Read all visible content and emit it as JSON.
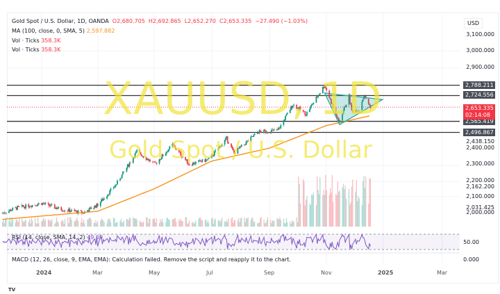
{
  "header": {
    "symbol": "Gold Spot / U.S. Dollar, 1D, OANDA",
    "open": "O2,680.705",
    "high": "H2,692.865",
    "low": "L2,652.270",
    "close": "C2,653.335",
    "change": "−27.490 (−1.03%)"
  },
  "indicators": {
    "ma_label": "MA (100, close, 0, SMA, 5)",
    "ma_value": "2,597.882",
    "vol1_label": "Vol · Ticks",
    "vol1_value": "358.3K",
    "vol2_label": "Vol · Ticks",
    "vol2_value": "358.3K",
    "rsi_label": "RSI (14, close, SMA, 14, 2)",
    "rsi_value": "49.69",
    "macd": "MACD (12, 26, close, 9, EMA, EMA): Calculation failed. Remove the script and reapply it to the chart."
  },
  "watermark": {
    "ticker": "XAUUSD, 1D",
    "name": "Gold Spot / U.S. Dollar"
  },
  "price_axis": {
    "currency": "USD",
    "ticks": [
      "3,100.000",
      "3,000.000",
      "2,900.000",
      "2,438.150",
      "2,400.000",
      "2,300.000",
      "2,200.000",
      "2,162.200",
      "2,100.000",
      "2,031.425",
      "2,000.000"
    ],
    "tick_values": [
      3100,
      3000,
      2900,
      2438.15,
      2400,
      2300,
      2200,
      2162.2,
      2100,
      2031.425,
      2000
    ],
    "rsi_tick": "50.00",
    "macd_tick": "0.000"
  },
  "level_tags": [
    {
      "label": "2,788.211",
      "value": 2788.211
    },
    {
      "label": "2,724.556",
      "value": 2724.556
    },
    {
      "label": "2,565.419",
      "value": 2565.419
    },
    {
      "label": "2,496.867",
      "value": 2496.867
    }
  ],
  "last_price": {
    "label": "2,653.335",
    "countdown": "02:14:08",
    "value": 2653.335,
    "color": "#f23645"
  },
  "time_axis": [
    "2024",
    "Mar",
    "May",
    "Jul",
    "Sep",
    "Nov",
    "2025",
    "Mar"
  ],
  "colors": {
    "up": "#089981",
    "down": "#f23645",
    "ma": "#f7931a",
    "rsi": "#7e57c2",
    "triangle": "#26a69a",
    "watermark": "#f2e339"
  },
  "chart_data": {
    "type": "candlestick",
    "price_anchors": [
      [
        "2023-11-20",
        2000
      ],
      [
        "2023-12-05",
        2030
      ],
      [
        "2024-01-01",
        2060
      ],
      [
        "2024-01-20",
        2025
      ],
      [
        "2024-02-14",
        2000
      ],
      [
        "2024-03-01",
        2050
      ],
      [
        "2024-03-20",
        2170
      ],
      [
        "2024-04-12",
        2380
      ],
      [
        "2024-05-01",
        2300
      ],
      [
        "2024-05-20",
        2420
      ],
      [
        "2024-06-07",
        2300
      ],
      [
        "2024-06-28",
        2330
      ],
      [
        "2024-07-17",
        2460
      ],
      [
        "2024-07-25",
        2370
      ],
      [
        "2024-08-20",
        2500
      ],
      [
        "2024-09-10",
        2510
      ],
      [
        "2024-09-26",
        2670
      ],
      [
        "2024-10-10",
        2610
      ],
      [
        "2024-10-30",
        2790
      ],
      [
        "2024-11-14",
        2560
      ],
      [
        "2024-11-25",
        2720
      ],
      [
        "2024-11-28",
        2630
      ],
      [
        "2024-12-06",
        2640
      ],
      [
        "2024-12-11",
        2725
      ],
      [
        "2024-12-18",
        2653
      ]
    ],
    "ma100_anchors": [
      [
        "2023-11-20",
        1960
      ],
      [
        "2024-03-01",
        2010
      ],
      [
        "2024-05-01",
        2150
      ],
      [
        "2024-07-01",
        2320
      ],
      [
        "2024-09-01",
        2400
      ],
      [
        "2024-11-01",
        2540
      ],
      [
        "2024-12-18",
        2600
      ]
    ],
    "triangle": [
      [
        "2024-10-30",
        2740
      ],
      [
        "2024-11-15",
        2545
      ],
      [
        "2024-12-31",
        2700
      ]
    ],
    "volume_note": "Vol · Ticks"
  }
}
